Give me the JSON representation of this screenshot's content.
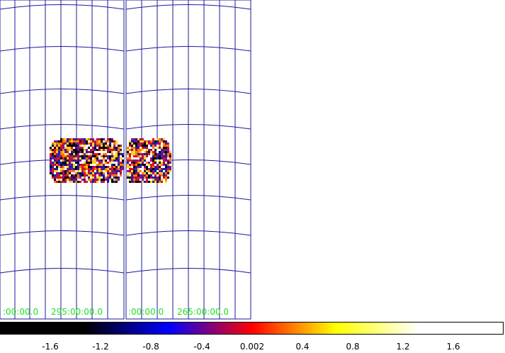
{
  "panels": [
    {
      "name": "left",
      "coord_labels": [
        ":00:00.0",
        "295:00:00.0"
      ]
    },
    {
      "name": "right",
      "coord_labels": [
        ":00:00.0",
        "265:00:00.0"
      ]
    }
  ],
  "colorbar": {
    "ticks": [
      "-1.6",
      "-1.2",
      "-0.8",
      "-0.4",
      "0.002",
      "0.4",
      "0.8",
      "1.2",
      "1.6"
    ],
    "stops": [
      "#000000",
      "#000000",
      "#0000ff",
      "#ff0000",
      "#ffff00",
      "#ffffff",
      "#ffffff"
    ],
    "colormap_name": "heat"
  },
  "colors": {
    "grid": "#1a1a9e",
    "coord_label": "#22e022",
    "noise": [
      "#ffffff",
      "#ffd21e",
      "#ff7a00",
      "#d4141f",
      "#8a1480",
      "#1e1ea8",
      "#000000"
    ]
  }
}
